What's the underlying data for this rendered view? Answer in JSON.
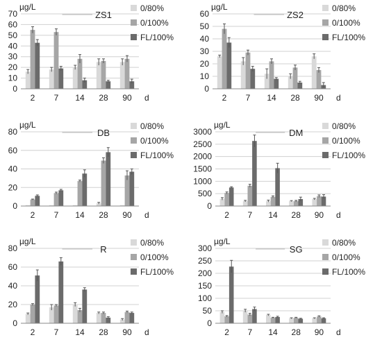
{
  "series_colors": [
    "#d9d9d9",
    "#a6a6a6",
    "#6b6b6b"
  ],
  "chart_data": [
    {
      "type": "bar",
      "title": "ZS1",
      "unit": "µg/L",
      "xunit": "d",
      "categories": [
        "2",
        "7",
        "14",
        "28",
        "90"
      ],
      "ylim": [
        0,
        70
      ],
      "yticks": [
        "0",
        "10",
        "20",
        "30",
        "40",
        "50",
        "60",
        "70"
      ],
      "legend": [
        "0/80%",
        "0/100%",
        "FL/100%"
      ],
      "legend_position": "top-right",
      "grid": true,
      "series": [
        {
          "name": "0/80%",
          "values": [
            16,
            18,
            20,
            25,
            25
          ],
          "errors": [
            2,
            2,
            2,
            3,
            3
          ]
        },
        {
          "name": "0/100%",
          "values": [
            55,
            53,
            28,
            26,
            28
          ],
          "errors": [
            3,
            3,
            4,
            2,
            3
          ]
        },
        {
          "name": "FL/100%",
          "values": [
            43,
            19,
            8,
            7,
            7
          ],
          "errors": [
            3,
            2,
            2,
            1,
            2
          ]
        }
      ]
    },
    {
      "type": "bar",
      "title": "ZS2",
      "unit": "µg/L",
      "xunit": "d",
      "categories": [
        "2",
        "7",
        "14",
        "28",
        "90"
      ],
      "ylim": [
        0,
        60
      ],
      "yticks": [
        "0",
        "10",
        "20",
        "30",
        "40",
        "50",
        "60"
      ],
      "legend": [
        "0/80%",
        "0/100%",
        "FL/100%"
      ],
      "legend_position": "top-right",
      "grid": true,
      "series": [
        {
          "name": "0/80%",
          "values": [
            26,
            22,
            12,
            10,
            26
          ],
          "errors": [
            1,
            3,
            4,
            2,
            2
          ]
        },
        {
          "name": "0/100%",
          "values": [
            48,
            29,
            22,
            17,
            15
          ],
          "errors": [
            4,
            2,
            2,
            2,
            2
          ]
        },
        {
          "name": "FL/100%",
          "values": [
            37,
            16,
            8,
            5,
            3
          ],
          "errors": [
            4,
            2,
            1,
            1,
            2
          ]
        }
      ]
    },
    {
      "type": "bar",
      "title": "DB",
      "unit": "µg/L",
      "xunit": "d",
      "categories": [
        "2",
        "7",
        "14",
        "28",
        "90"
      ],
      "ylim": [
        0,
        80
      ],
      "yticks": [
        "0",
        "20",
        "40",
        "60",
        "80"
      ],
      "legend": [
        "0/80%",
        "0/100%",
        "FL/100%"
      ],
      "legend_position": "top-right",
      "grid": true,
      "series": [
        {
          "name": "0/80%",
          "values": [
            1,
            1,
            1,
            3,
            1
          ],
          "errors": [
            0,
            0,
            0,
            1,
            0
          ]
        },
        {
          "name": "0/100%",
          "values": [
            7,
            14,
            27,
            49,
            33
          ],
          "errors": [
            0.5,
            1,
            1,
            3,
            5
          ]
        },
        {
          "name": "FL/100%",
          "values": [
            11,
            17,
            35,
            58,
            37
          ],
          "errors": [
            1,
            1,
            4,
            5,
            3
          ]
        }
      ]
    },
    {
      "type": "bar",
      "title": "DM",
      "unit": "µg/L",
      "xunit": "d",
      "categories": [
        "2",
        "7",
        "14",
        "28",
        "90"
      ],
      "ylim": [
        0,
        3000
      ],
      "yticks": [
        "0",
        "500",
        "1000",
        "1500",
        "2000",
        "2500",
        "3000"
      ],
      "legend": [
        "0/80%",
        "0/100%",
        "FL/100%"
      ],
      "legend_position": "top-right",
      "grid": true,
      "series": [
        {
          "name": "0/80%",
          "values": [
            290,
            200,
            200,
            200,
            280
          ],
          "errors": [
            50,
            30,
            40,
            20,
            30
          ]
        },
        {
          "name": "0/100%",
          "values": [
            530,
            820,
            370,
            200,
            400
          ],
          "errors": [
            40,
            60,
            40,
            30,
            50
          ]
        },
        {
          "name": "FL/100%",
          "values": [
            750,
            2630,
            1530,
            280,
            380
          ],
          "errors": [
            30,
            240,
            200,
            80,
            80
          ]
        }
      ]
    },
    {
      "type": "bar",
      "title": "R",
      "unit": "µg/L",
      "xunit": "d",
      "categories": [
        "2",
        "7",
        "14",
        "28",
        "90"
      ],
      "ylim": [
        0,
        80
      ],
      "yticks": [
        "0",
        "20",
        "40",
        "60",
        "80"
      ],
      "legend": [
        "0/80%",
        "0/100%",
        "FL/100%"
      ],
      "legend_position": "top-right",
      "grid": true,
      "series": [
        {
          "name": "0/80%",
          "values": [
            10,
            17,
            20,
            11,
            4
          ],
          "errors": [
            1,
            3,
            2,
            1,
            1
          ]
        },
        {
          "name": "0/100%",
          "values": [
            20,
            19,
            14,
            11,
            12
          ],
          "errors": [
            1,
            1,
            2,
            1,
            1
          ]
        },
        {
          "name": "FL/100%",
          "values": [
            51,
            66,
            36,
            6,
            11
          ],
          "errors": [
            6,
            4,
            2,
            1,
            1
          ]
        }
      ]
    },
    {
      "type": "bar",
      "title": "SG",
      "unit": "µg/L",
      "xunit": "d",
      "categories": [
        "2",
        "7",
        "14",
        "28",
        "90"
      ],
      "ylim": [
        0,
        300
      ],
      "yticks": [
        "0",
        "50",
        "100",
        "150",
        "200",
        "250",
        "300"
      ],
      "legend": [
        "0/80%",
        "0/100%",
        "FL/100%"
      ],
      "legend_position": "top-right",
      "grid": true,
      "series": [
        {
          "name": "0/80%",
          "values": [
            45,
            50,
            33,
            20,
            20
          ],
          "errors": [
            5,
            6,
            3,
            2,
            2
          ]
        },
        {
          "name": "0/100%",
          "values": [
            28,
            35,
            22,
            22,
            27
          ],
          "errors": [
            3,
            5,
            2,
            2,
            3
          ]
        },
        {
          "name": "FL/100%",
          "values": [
            227,
            57,
            25,
            18,
            20
          ],
          "errors": [
            25,
            8,
            3,
            2,
            2
          ]
        }
      ]
    }
  ]
}
